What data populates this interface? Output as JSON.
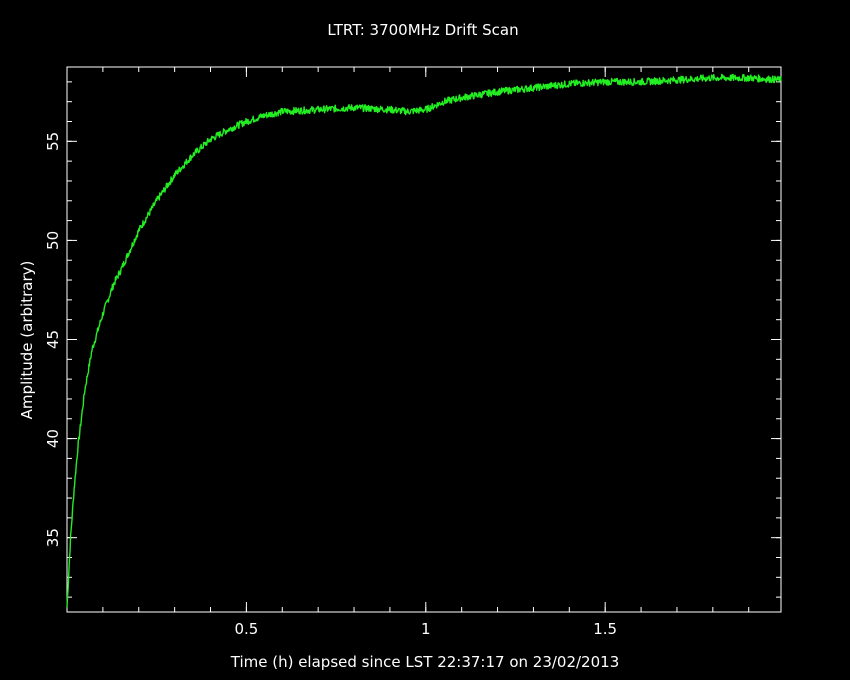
{
  "colors": {
    "background": "#000000",
    "foreground": "#ffffff",
    "series": "#22ee22"
  },
  "chart_data": {
    "type": "line",
    "title": "LTRT: 3700MHz Drift Scan",
    "xlabel": "Time (h) elapsed since LST 22:37:17 on 23/02/2013",
    "ylabel": "Amplitude (arbitrary)",
    "xlim": [
      0,
      1.99
    ],
    "ylim": [
      31.25,
      58.75
    ],
    "xticks": [
      0.5,
      1,
      1.5
    ],
    "xtick_labels": [
      "0.5",
      "1",
      "1.5"
    ],
    "yticks": [
      35,
      40,
      45,
      50,
      55
    ],
    "ytick_labels": [
      "35",
      "40",
      "45",
      "50",
      "55"
    ],
    "grid": false,
    "series": [
      {
        "x": [
          0.0,
          0.01,
          0.02,
          0.03,
          0.05,
          0.07,
          0.1,
          0.13,
          0.15,
          0.2,
          0.25,
          0.3,
          0.35,
          0.4,
          0.45,
          0.5,
          0.55,
          0.6,
          0.7,
          0.8,
          0.9,
          0.95,
          1.0,
          1.05,
          1.1,
          1.2,
          1.3,
          1.4,
          1.5,
          1.6,
          1.7,
          1.8,
          1.9,
          1.99
        ],
        "y": [
          31.5,
          35.0,
          37.5,
          39.5,
          42.5,
          44.5,
          46.3,
          47.8,
          48.5,
          50.5,
          52.0,
          53.3,
          54.3,
          55.1,
          55.6,
          56.0,
          56.3,
          56.5,
          56.6,
          56.7,
          56.6,
          56.5,
          56.6,
          57.0,
          57.2,
          57.5,
          57.7,
          57.9,
          58.0,
          58.0,
          58.1,
          58.2,
          58.2,
          58.1
        ]
      }
    ]
  }
}
